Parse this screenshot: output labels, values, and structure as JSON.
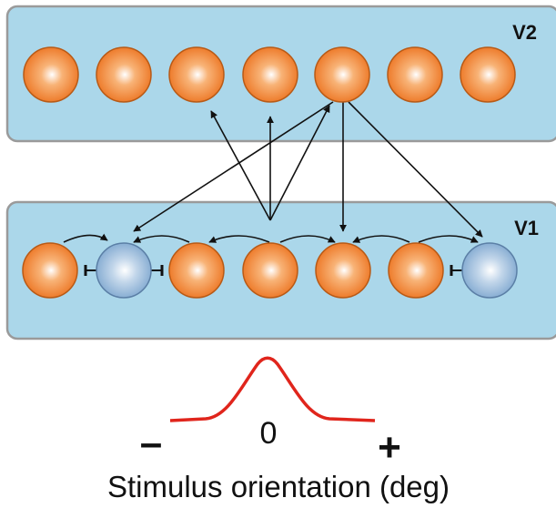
{
  "areas": {
    "top_label": "V2",
    "bottom_label": "V1"
  },
  "v2_neurons": [
    {
      "type": "excitatory"
    },
    {
      "type": "excitatory"
    },
    {
      "type": "excitatory"
    },
    {
      "type": "excitatory"
    },
    {
      "type": "excitatory"
    },
    {
      "type": "excitatory"
    },
    {
      "type": "excitatory"
    }
  ],
  "v1_neurons": [
    {
      "type": "excitatory"
    },
    {
      "type": "inhibitory"
    },
    {
      "type": "excitatory"
    },
    {
      "type": "excitatory"
    },
    {
      "type": "excitatory"
    },
    {
      "type": "excitatory"
    },
    {
      "type": "inhibitory"
    }
  ],
  "tuning": {
    "minus_sign": "–",
    "zero_label": "0",
    "plus_sign": "+",
    "axis_label": "Stimulus orientation (deg)"
  },
  "colors": {
    "panel_fill": "#abd7ea",
    "panel_stroke": "#9a9a9a",
    "excitatory_fill": "#ef7f27",
    "inhibitory_fill": "#8fb4d6",
    "arrow": "#111111",
    "tuning_curve": "#e0251c"
  }
}
